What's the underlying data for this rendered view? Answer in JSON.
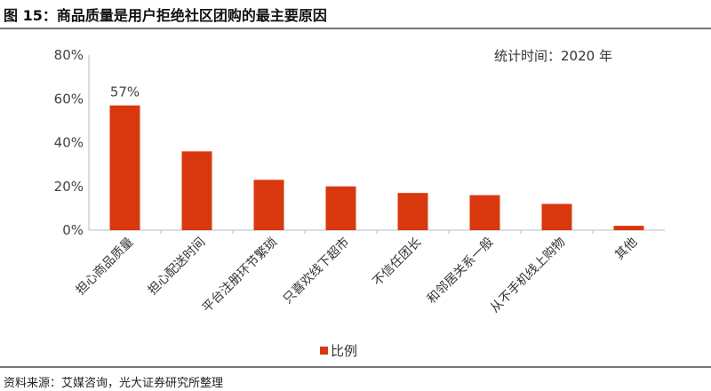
{
  "title": "图 15：商品质量是用户拒绝社区团购的最主要原因",
  "note": "统计时间：2020 年",
  "source": "资料来源：艾媒咨询，光大证券研究所整理",
  "chart_data": {
    "type": "bar",
    "categories": [
      "担心商品质量",
      "担心配送时间",
      "平台注册环节繁琐",
      "只喜欢线下超市",
      "不信任团长",
      "和邻居关系一般",
      "从不手机线上购物",
      "其他"
    ],
    "series": [
      {
        "name": "比例",
        "values": [
          57,
          36,
          23,
          20,
          17,
          16,
          12,
          2
        ],
        "color": "#d9380f"
      }
    ],
    "data_labels": [
      {
        "index": 0,
        "text": "57%"
      }
    ],
    "yticks": [
      "0%",
      "20%",
      "40%",
      "60%",
      "80%"
    ],
    "ylim": [
      0,
      80
    ],
    "grid": false,
    "legend": "bottom"
  }
}
